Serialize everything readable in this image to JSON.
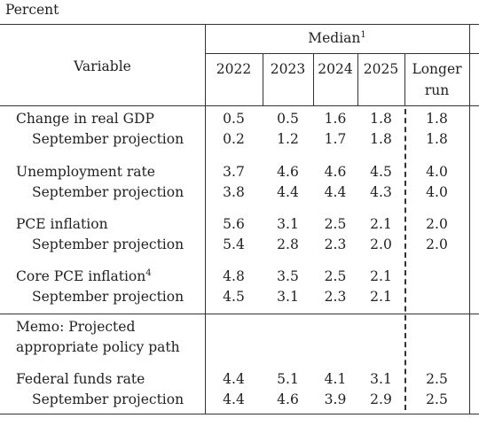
{
  "unit_label": "Percent",
  "header": {
    "median_label": "Median",
    "median_note": "1",
    "variable_label": "Variable",
    "columns": [
      "2022",
      "2023",
      "2024",
      "2025"
    ],
    "longer_run": [
      "Longer",
      "run"
    ]
  },
  "rows": [
    {
      "label": "Change in real GDP",
      "note": "",
      "values": [
        "0.5",
        "0.5",
        "1.6",
        "1.8",
        "1.8"
      ]
    },
    {
      "label": "September projection",
      "note": "",
      "values": [
        "0.2",
        "1.2",
        "1.7",
        "1.8",
        "1.8"
      ]
    },
    {
      "label": "Unemployment rate",
      "note": "",
      "values": [
        "3.7",
        "4.6",
        "4.6",
        "4.5",
        "4.0"
      ]
    },
    {
      "label": "September projection",
      "note": "",
      "values": [
        "3.8",
        "4.4",
        "4.4",
        "4.3",
        "4.0"
      ]
    },
    {
      "label": "PCE inflation",
      "note": "",
      "values": [
        "5.6",
        "3.1",
        "2.5",
        "2.1",
        "2.0"
      ]
    },
    {
      "label": "September projection",
      "note": "",
      "values": [
        "5.4",
        "2.8",
        "2.3",
        "2.0",
        "2.0"
      ]
    },
    {
      "label": "Core PCE inflation",
      "note": "4",
      "values": [
        "4.8",
        "3.5",
        "2.5",
        "2.1",
        ""
      ]
    },
    {
      "label": "September projection",
      "note": "",
      "values": [
        "4.5",
        "3.1",
        "2.3",
        "2.1",
        ""
      ]
    }
  ],
  "memo": [
    "Memo: Projected",
    "appropriate policy path"
  ],
  "memo_rows": [
    {
      "label": "Federal funds rate",
      "note": "",
      "values": [
        "4.4",
        "5.1",
        "4.1",
        "3.1",
        "2.5"
      ]
    },
    {
      "label": "September projection",
      "note": "",
      "values": [
        "4.4",
        "4.6",
        "3.9",
        "2.9",
        "2.5"
      ]
    }
  ]
}
